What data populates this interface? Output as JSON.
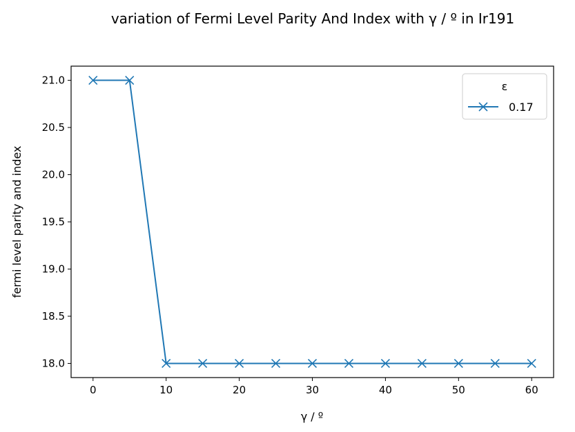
{
  "chart_data": {
    "type": "line",
    "title": "variation of Fermi Level Parity And Index with γ / º in Ir191",
    "xlabel": "γ / º",
    "ylabel": "fermi level parity and index",
    "xlim": [
      -3,
      63
    ],
    "ylim": [
      17.85,
      21.15
    ],
    "xticks": [
      0,
      10,
      20,
      30,
      40,
      50,
      60
    ],
    "xtick_labels": [
      "0",
      "10",
      "20",
      "30",
      "40",
      "50",
      "60"
    ],
    "yticks": [
      18.0,
      18.5,
      19.0,
      19.5,
      20.0,
      20.5,
      21.0
    ],
    "ytick_labels": [
      "18.0",
      "18.5",
      "19.0",
      "19.5",
      "20.0",
      "20.5",
      "21.0"
    ],
    "grid": false,
    "legend": {
      "title": "ε",
      "placement": "top-right"
    },
    "series": [
      {
        "name": "0.17",
        "color": "#1f77b4",
        "marker": "x",
        "x": [
          0,
          5,
          10,
          15,
          20,
          25,
          30,
          35,
          40,
          45,
          50,
          55,
          60
        ],
        "y": [
          21,
          21,
          18,
          18,
          18,
          18,
          18,
          18,
          18,
          18,
          18,
          18,
          18
        ]
      }
    ]
  }
}
